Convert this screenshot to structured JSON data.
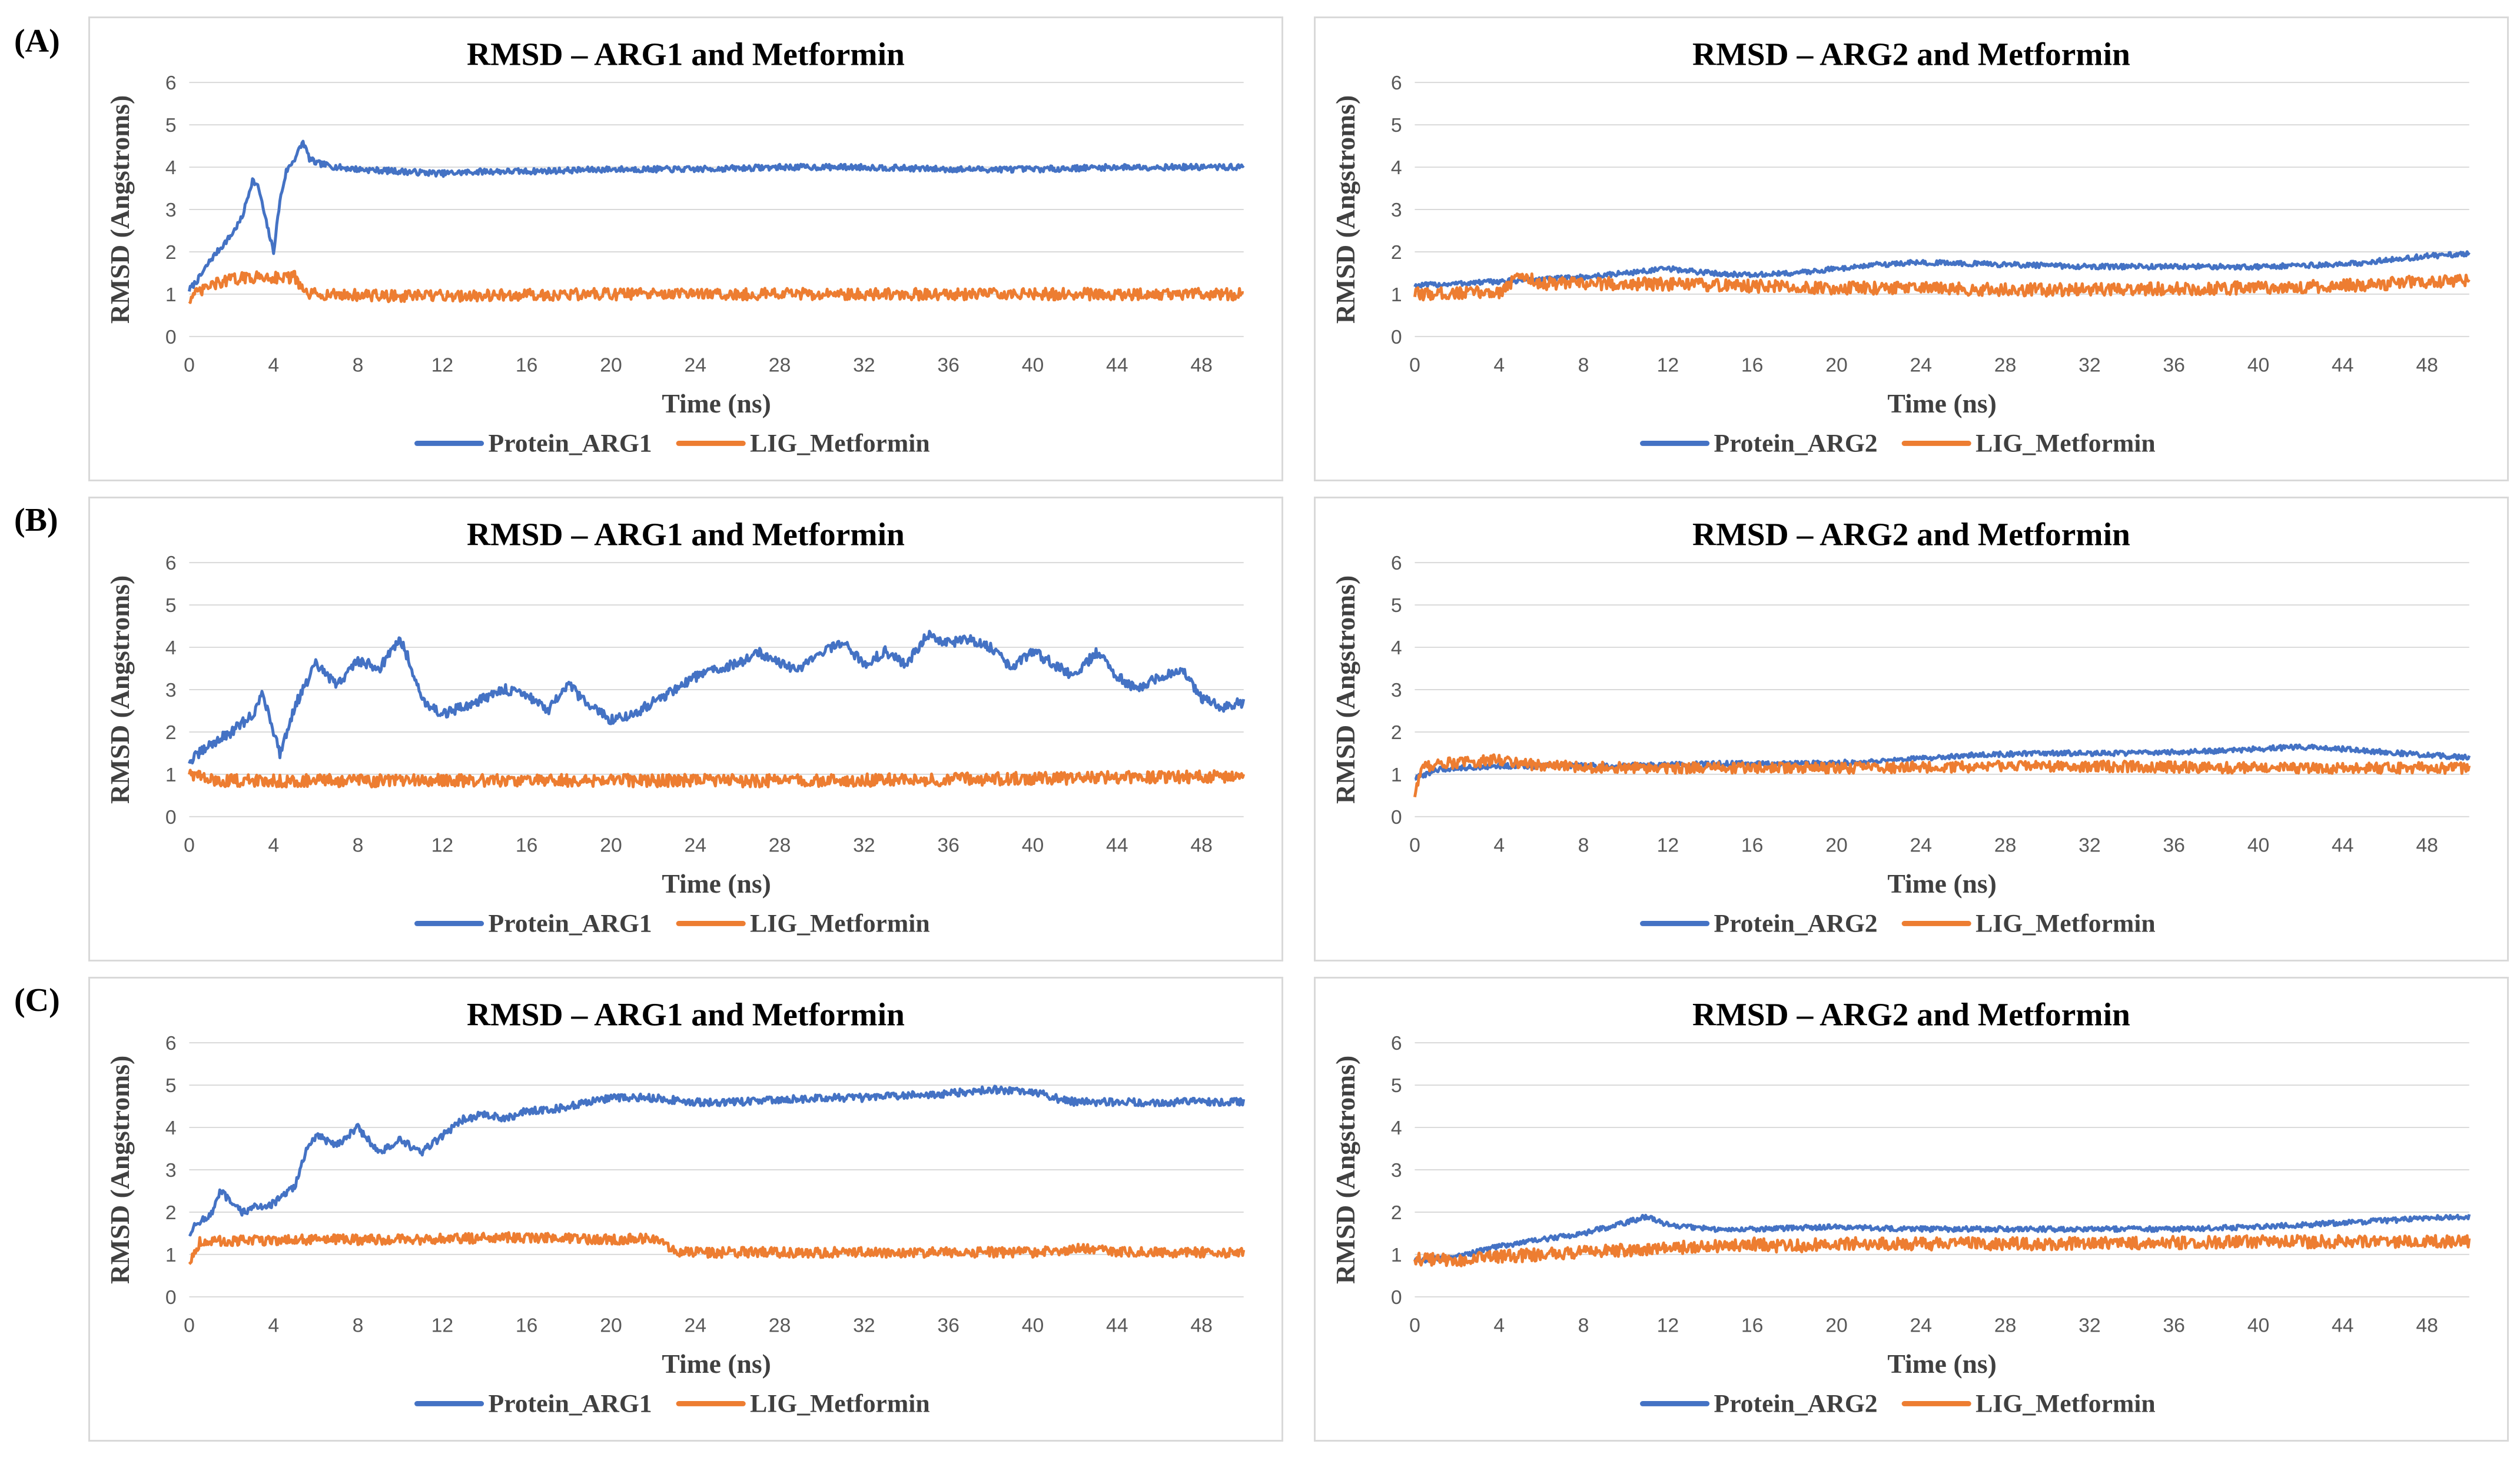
{
  "row_labels": [
    "(A)",
    "(B)",
    "(C)"
  ],
  "colors": {
    "protein": "#4472C4",
    "ligand": "#ED7D31",
    "grid": "#D9D9D9"
  },
  "chart_data": [
    {
      "panel": "A-left",
      "type": "line",
      "title": "RMSD – ARG1 and Metformin",
      "xlabel": "Time (ns)",
      "ylabel": "RMSD (Angstroms)",
      "xlim": [
        0,
        50
      ],
      "ylim": [
        0,
        6
      ],
      "xticks": [
        "0",
        "4",
        "8",
        "12",
        "16",
        "20",
        "24",
        "28",
        "32",
        "36",
        "40",
        "44",
        "48"
      ],
      "yticks": [
        "0",
        "1",
        "2",
        "3",
        "4",
        "5",
        "6"
      ],
      "series": [
        {
          "name": "Protein_ARG1",
          "color": "#4472C4",
          "noise": 0.07,
          "x": [
            0,
            0.5,
            1,
            1.5,
            2,
            2.5,
            3,
            3.3,
            3.6,
            4,
            4.3,
            4.6,
            5,
            5.4,
            5.7,
            6,
            7,
            8,
            10,
            12,
            14,
            16,
            20,
            24,
            28,
            32,
            36,
            40,
            44,
            48,
            50
          ],
          "y": [
            1.1,
            1.4,
            1.8,
            2.1,
            2.4,
            2.8,
            3.7,
            3.5,
            2.8,
            2.0,
            3.2,
            3.9,
            4.2,
            4.6,
            4.2,
            4.1,
            4.0,
            3.95,
            3.9,
            3.85,
            3.9,
            3.9,
            3.95,
            3.95,
            4.0,
            4.0,
            3.95,
            3.95,
            4.0,
            4.0,
            4.0
          ]
        },
        {
          "name": "LIG_Metformin",
          "color": "#ED7D31",
          "noise": 0.14,
          "x": [
            0,
            1,
            2,
            3,
            4,
            5,
            5.5,
            6,
            10,
            20,
            30,
            40,
            50
          ],
          "y": [
            0.9,
            1.2,
            1.35,
            1.4,
            1.4,
            1.4,
            1.0,
            1.0,
            0.95,
            1.0,
            1.0,
            1.0,
            1.0
          ]
        }
      ]
    },
    {
      "panel": "A-right",
      "type": "line",
      "title": "RMSD – ARG2 and Metformin",
      "xlabel": "Time (ns)",
      "ylabel": "RMSD (Angstroms)",
      "xlim": [
        0,
        50
      ],
      "ylim": [
        0,
        6
      ],
      "xticks": [
        "0",
        "4",
        "8",
        "12",
        "16",
        "20",
        "24",
        "28",
        "32",
        "36",
        "40",
        "44",
        "48"
      ],
      "yticks": [
        "0",
        "1",
        "2",
        "3",
        "4",
        "5",
        "6"
      ],
      "series": [
        {
          "name": "Protein_ARG2",
          "color": "#4472C4",
          "noise": 0.06,
          "x": [
            0,
            2,
            4,
            6,
            8,
            10,
            12,
            14,
            16,
            18,
            20,
            22,
            24,
            28,
            32,
            36,
            40,
            44,
            48,
            50
          ],
          "y": [
            1.2,
            1.25,
            1.3,
            1.35,
            1.4,
            1.5,
            1.6,
            1.5,
            1.45,
            1.5,
            1.6,
            1.7,
            1.75,
            1.7,
            1.65,
            1.65,
            1.65,
            1.7,
            1.9,
            1.95
          ]
        },
        {
          "name": "LIG_Metformin",
          "color": "#ED7D31",
          "noise": 0.15,
          "x": [
            0,
            4,
            5,
            6,
            10,
            20,
            30,
            40,
            44,
            48,
            50
          ],
          "y": [
            1.0,
            1.05,
            1.45,
            1.25,
            1.25,
            1.15,
            1.1,
            1.15,
            1.2,
            1.3,
            1.3
          ]
        }
      ]
    },
    {
      "panel": "B-left",
      "type": "line",
      "title": "RMSD – ARG1 and Metformin",
      "xlabel": "Time (ns)",
      "ylabel": "RMSD (Angstroms)",
      "xlim": [
        0,
        50
      ],
      "ylim": [
        0,
        6
      ],
      "xticks": [
        "0",
        "4",
        "8",
        "12",
        "16",
        "20",
        "24",
        "28",
        "32",
        "36",
        "40",
        "44",
        "48"
      ],
      "yticks": [
        "0",
        "1",
        "2",
        "3",
        "4",
        "5",
        "6"
      ],
      "series": [
        {
          "name": "Protein_ARG1",
          "color": "#4472C4",
          "noise": 0.12,
          "x": [
            0,
            1,
            2,
            3,
            3.5,
            4.3,
            5,
            6,
            7,
            8,
            9,
            10,
            10.5,
            11,
            12,
            13,
            14,
            15,
            16,
            17,
            18,
            19,
            20,
            21,
            22,
            23,
            24,
            25,
            26,
            27,
            28,
            29,
            30,
            31,
            32,
            33,
            34,
            35,
            36,
            37,
            38,
            39,
            40,
            41,
            42,
            43,
            44,
            45,
            46,
            47,
            48,
            49,
            50
          ],
          "y": [
            1.3,
            1.7,
            2.0,
            2.4,
            2.9,
            1.5,
            2.6,
            3.6,
            3.1,
            3.7,
            3.5,
            4.2,
            3.6,
            2.8,
            2.4,
            2.6,
            2.8,
            3.0,
            2.9,
            2.5,
            3.1,
            2.6,
            2.3,
            2.4,
            2.7,
            3.0,
            3.3,
            3.5,
            3.6,
            3.9,
            3.6,
            3.5,
            3.9,
            4.1,
            3.6,
            3.9,
            3.6,
            4.3,
            4.1,
            4.2,
            4.0,
            3.5,
            3.9,
            3.6,
            3.3,
            3.9,
            3.3,
            3.0,
            3.3,
            3.5,
            2.8,
            2.6,
            2.7
          ]
        },
        {
          "name": "LIG_Metformin",
          "color": "#ED7D31",
          "noise": 0.15,
          "x": [
            0,
            1,
            10,
            20,
            30,
            40,
            50
          ],
          "y": [
            1.05,
            0.85,
            0.85,
            0.85,
            0.85,
            0.9,
            0.95
          ]
        }
      ]
    },
    {
      "panel": "B-right",
      "type": "line",
      "title": "RMSD – ARG2 and Metformin",
      "xlabel": "Time (ns)",
      "ylabel": "RMSD (Angstroms)",
      "xlim": [
        0,
        50
      ],
      "ylim": [
        0,
        6
      ],
      "xticks": [
        "0",
        "4",
        "8",
        "12",
        "16",
        "20",
        "24",
        "28",
        "32",
        "36",
        "40",
        "44",
        "48"
      ],
      "yticks": [
        "0",
        "1",
        "2",
        "3",
        "4",
        "5",
        "6"
      ],
      "series": [
        {
          "name": "Protein_ARG2",
          "color": "#4472C4",
          "noise": 0.06,
          "x": [
            0,
            1,
            2,
            4,
            6,
            10,
            14,
            18,
            22,
            26,
            30,
            34,
            38,
            42,
            44,
            48,
            50
          ],
          "y": [
            0.9,
            1.1,
            1.15,
            1.2,
            1.2,
            1.2,
            1.25,
            1.25,
            1.3,
            1.45,
            1.5,
            1.5,
            1.55,
            1.65,
            1.6,
            1.45,
            1.4
          ]
        },
        {
          "name": "LIG_Metformin",
          "color": "#ED7D31",
          "noise": 0.13,
          "x": [
            0,
            0.3,
            1,
            3,
            4,
            6,
            10,
            20,
            30,
            40,
            50
          ],
          "y": [
            0.5,
            1.15,
            1.25,
            1.3,
            1.35,
            1.2,
            1.15,
            1.15,
            1.2,
            1.15,
            1.15
          ]
        }
      ]
    },
    {
      "panel": "C-left",
      "type": "line",
      "title": "RMSD – ARG1 and Metformin",
      "xlabel": "Time (ns)",
      "ylabel": "RMSD (Angstroms)",
      "xlim": [
        0,
        50
      ],
      "ylim": [
        0,
        6
      ],
      "xticks": [
        "0",
        "4",
        "8",
        "12",
        "16",
        "20",
        "24",
        "28",
        "32",
        "36",
        "40",
        "44",
        "48"
      ],
      "yticks": [
        "0",
        "1",
        "2",
        "3",
        "4",
        "5",
        "6"
      ],
      "series": [
        {
          "name": "Protein_ARG1",
          "color": "#4472C4",
          "noise": 0.09,
          "x": [
            0,
            0.5,
            1,
            1.5,
            2,
            2.5,
            3,
            4,
            5,
            5.5,
            6,
            7,
            8,
            9,
            10,
            11,
            12,
            13,
            14,
            15,
            16,
            17,
            18,
            20,
            22,
            24,
            26,
            28,
            30,
            32,
            34,
            36,
            38,
            40,
            41,
            42,
            44,
            46,
            48,
            50
          ],
          "y": [
            1.5,
            1.8,
            1.9,
            2.5,
            2.2,
            2.0,
            2.1,
            2.2,
            2.6,
            3.4,
            3.8,
            3.6,
            4.0,
            3.4,
            3.7,
            3.4,
            3.8,
            4.2,
            4.3,
            4.2,
            4.4,
            4.4,
            4.5,
            4.7,
            4.7,
            4.6,
            4.6,
            4.65,
            4.7,
            4.7,
            4.75,
            4.8,
            4.9,
            4.85,
            4.7,
            4.6,
            4.6,
            4.6,
            4.6,
            4.6
          ]
        },
        {
          "name": "LIG_Metformin",
          "color": "#ED7D31",
          "noise": 0.12,
          "x": [
            0,
            0.5,
            5,
            10,
            15,
            20,
            22,
            22.5,
            23,
            30,
            40,
            43,
            44,
            50
          ],
          "y": [
            0.8,
            1.3,
            1.35,
            1.35,
            1.4,
            1.35,
            1.4,
            1.3,
            1.05,
            1.05,
            1.05,
            1.15,
            1.05,
            1.05
          ]
        }
      ]
    },
    {
      "panel": "C-right",
      "type": "line",
      "title": "RMSD – ARG2 and Metformin",
      "xlabel": "Time (ns)",
      "ylabel": "RMSD (Angstroms)",
      "xlim": [
        0,
        50
      ],
      "ylim": [
        0,
        6
      ],
      "xticks": [
        "0",
        "4",
        "8",
        "12",
        "16",
        "20",
        "24",
        "28",
        "32",
        "36",
        "40",
        "44",
        "48"
      ],
      "yticks": [
        "0",
        "1",
        "2",
        "3",
        "4",
        "5",
        "6"
      ],
      "series": [
        {
          "name": "Protein_ARG2",
          "color": "#4472C4",
          "noise": 0.06,
          "x": [
            0,
            2,
            4,
            6,
            8,
            10,
            11,
            12,
            14,
            16,
            20,
            24,
            28,
            32,
            36,
            40,
            44,
            48,
            50
          ],
          "y": [
            0.85,
            0.95,
            1.2,
            1.35,
            1.5,
            1.75,
            1.9,
            1.7,
            1.6,
            1.6,
            1.65,
            1.6,
            1.6,
            1.6,
            1.6,
            1.65,
            1.75,
            1.85,
            1.9
          ]
        },
        {
          "name": "LIG_Metformin",
          "color": "#ED7D31",
          "noise": 0.15,
          "x": [
            0,
            2,
            4,
            8,
            12,
            16,
            17,
            18,
            20,
            30,
            40,
            50
          ],
          "y": [
            0.9,
            0.85,
            0.95,
            1.05,
            1.15,
            1.25,
            1.2,
            1.2,
            1.25,
            1.25,
            1.3,
            1.3
          ]
        }
      ]
    }
  ]
}
